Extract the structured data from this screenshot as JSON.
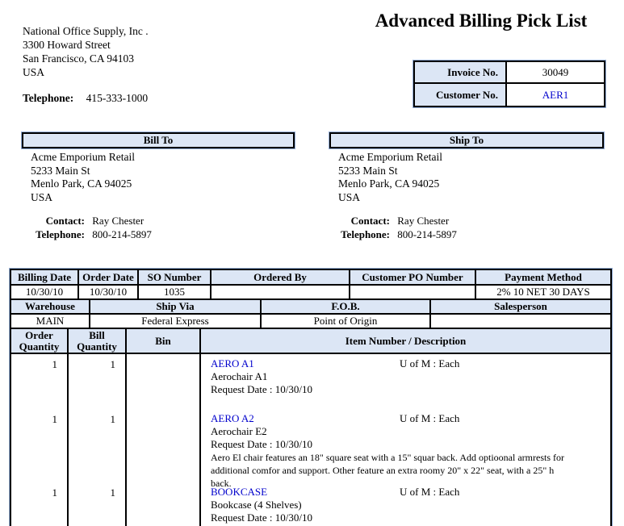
{
  "company": {
    "name": "National Office Supply, Inc .",
    "street": "3300 Howard Street",
    "city_line": "San Francisco, CA 94103",
    "country": "USA",
    "phone_label": "Telephone:",
    "phone": "415-333-1000"
  },
  "title": "Advanced Billing Pick List",
  "invoice_box": {
    "invoice_label": "Invoice No.",
    "invoice_value": "30049",
    "customer_label": "Customer No.",
    "customer_value": "AER1"
  },
  "bill_to": {
    "header": "Bill To",
    "name": "Acme Emporium Retail",
    "street": "5233 Main St",
    "city_line": "Menlo Park, CA 94025",
    "country": "USA",
    "contact_label": "Contact:",
    "contact": "Ray Chester",
    "phone_label": "Telephone:",
    "phone": "800-214-5897"
  },
  "ship_to": {
    "header": "Ship To",
    "name": "Acme Emporium Retail",
    "street": "5233 Main St",
    "city_line": "Menlo Park, CA 94025",
    "country": "USA",
    "contact_label": "Contact:",
    "contact": "Ray Chester",
    "phone_label": "Telephone:",
    "phone": "800-214-5897"
  },
  "order_info": {
    "headers_row1": [
      "Billing Date",
      "Order Date",
      "SO Number",
      "Ordered By",
      "Customer PO Number",
      "Payment Method"
    ],
    "values_row1": [
      "10/30/10",
      "10/30/10",
      "1035",
      "",
      "",
      "2% 10 NET 30 DAYS"
    ],
    "headers_row2": [
      "Warehouse",
      "Ship Via",
      "F.O.B.",
      "Salesperson"
    ],
    "values_row2": [
      "MAIN",
      "Federal Express",
      "Point of Origin",
      ""
    ]
  },
  "line_items": {
    "headers": [
      "Order Quantity",
      "Bill Quantity",
      "Bin",
      "Item Number / Description"
    ],
    "items": [
      {
        "order_qty": "1",
        "bill_qty": "1",
        "bin": "",
        "item_number": "AERO A1",
        "uofm": "U of M : Each",
        "description": "Aerochair A1",
        "request_date": "Request Date : 10/30/10",
        "long_description": ""
      },
      {
        "order_qty": "1",
        "bill_qty": "1",
        "bin": "",
        "item_number": "AERO A2",
        "uofm": "U of M : Each",
        "description": "Aerochair E2",
        "request_date": "Request Date : 10/30/10",
        "long_description": "Aero El chair features an 18\" square seat with a 15\" squar back.  Add optioonal armrests for additional comfor and support.  Other feature an extra roomy 20\" x 22\" seat, with a 25\" h back."
      },
      {
        "order_qty": "1",
        "bill_qty": "1",
        "bin": "",
        "item_number": "BOOKCASE",
        "uofm": "U of M : Each",
        "description": "Bookcase (4 Shelves)",
        "request_date": "Request Date : 10/30/10",
        "long_description": ""
      }
    ]
  },
  "colors": {
    "header_bg": "#dce6f5",
    "link_blue": "#0000cc",
    "border_black": "#000000",
    "outline_blue": "#93add6"
  }
}
